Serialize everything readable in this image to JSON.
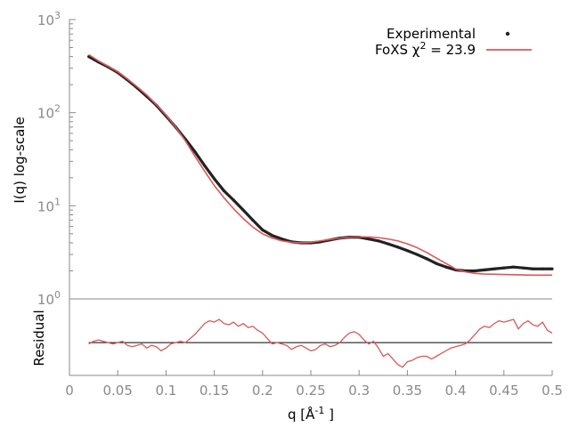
{
  "chart_data": [
    {
      "type": "scatter",
      "panel": "main",
      "xlim": [
        0,
        0.5
      ],
      "ylim": [
        1,
        1000
      ],
      "y_scale": "log",
      "ylabel": "I(q) log-scale",
      "y_ticks": [
        {
          "value": 1,
          "base": "10",
          "exp": "0"
        },
        {
          "value": 10,
          "base": "10",
          "exp": "1"
        },
        {
          "value": 100,
          "base": "10",
          "exp": "2"
        },
        {
          "value": 1000,
          "base": "10",
          "exp": "3"
        }
      ],
      "legend": {
        "position": "top-right",
        "entries": [
          {
            "label": "Experimental",
            "color": "#222222",
            "style": "points"
          },
          {
            "label_prefix": "FoXS χ",
            "label_sup": "2",
            "label_suffix": " = 23.9",
            "color": "#d9585a",
            "style": "line"
          }
        ]
      },
      "series": [
        {
          "name": "Experimental",
          "color": "#222222",
          "x": [
            0.02,
            0.03,
            0.04,
            0.05,
            0.06,
            0.07,
            0.08,
            0.09,
            0.1,
            0.11,
            0.12,
            0.13,
            0.14,
            0.15,
            0.16,
            0.17,
            0.18,
            0.19,
            0.2,
            0.21,
            0.22,
            0.23,
            0.24,
            0.25,
            0.26,
            0.27,
            0.28,
            0.29,
            0.3,
            0.31,
            0.32,
            0.33,
            0.34,
            0.35,
            0.36,
            0.37,
            0.38,
            0.39,
            0.4,
            0.41,
            0.42,
            0.43,
            0.44,
            0.45,
            0.46,
            0.47,
            0.48,
            0.49,
            0.5
          ],
          "y": [
            400,
            350,
            310,
            270,
            225,
            185,
            150,
            120,
            92,
            70,
            52,
            38,
            27,
            19.5,
            14.5,
            11.5,
            9.0,
            7.0,
            5.5,
            4.8,
            4.4,
            4.1,
            4.0,
            4.0,
            4.1,
            4.3,
            4.5,
            4.6,
            4.6,
            4.4,
            4.2,
            3.9,
            3.6,
            3.3,
            3.0,
            2.7,
            2.4,
            2.2,
            2.05,
            2.0,
            2.0,
            2.05,
            2.1,
            2.15,
            2.2,
            2.15,
            2.1,
            2.1,
            2.1
          ]
        },
        {
          "name_prefix": "FoXS χ",
          "name_sup": "2",
          "name_suffix": " = 23.9",
          "color": "#d9585a",
          "x": [
            0.02,
            0.03,
            0.04,
            0.05,
            0.06,
            0.07,
            0.08,
            0.09,
            0.1,
            0.11,
            0.12,
            0.13,
            0.14,
            0.15,
            0.16,
            0.17,
            0.18,
            0.19,
            0.2,
            0.21,
            0.22,
            0.23,
            0.24,
            0.25,
            0.26,
            0.27,
            0.28,
            0.29,
            0.3,
            0.31,
            0.32,
            0.33,
            0.34,
            0.35,
            0.36,
            0.37,
            0.38,
            0.39,
            0.4,
            0.41,
            0.42,
            0.43,
            0.44,
            0.45,
            0.46,
            0.47,
            0.48,
            0.49,
            0.5
          ],
          "y": [
            420,
            360,
            315,
            275,
            230,
            190,
            155,
            122,
            94,
            70,
            50,
            34,
            23.5,
            16.5,
            12.2,
            9.3,
            7.3,
            5.9,
            5.0,
            4.5,
            4.2,
            4.05,
            4.0,
            4.05,
            4.2,
            4.35,
            4.5,
            4.6,
            4.65,
            4.62,
            4.55,
            4.4,
            4.2,
            3.9,
            3.55,
            3.15,
            2.75,
            2.4,
            2.1,
            1.95,
            1.88,
            1.85,
            1.84,
            1.83,
            1.82,
            1.81,
            1.8,
            1.8,
            1.8
          ]
        }
      ]
    },
    {
      "type": "line",
      "panel": "residual",
      "xlabel_prefix": "q [Å",
      "xlabel_sup": "-1",
      "xlabel_suffix": " ]",
      "ylabel": "Residual",
      "xlim": [
        0,
        0.5
      ],
      "ylim": [
        -1.2,
        1.6
      ],
      "x_tick_labels": [
        "0",
        "0.05",
        "0.1",
        "0.15",
        "0.2",
        "0.25",
        "0.3",
        "0.35",
        "0.4",
        "0.45",
        "0.5"
      ],
      "baseline": 0,
      "series": [
        {
          "color": "#d9585a",
          "x": [
            0.02,
            0.025,
            0.03,
            0.035,
            0.04,
            0.045,
            0.05,
            0.055,
            0.06,
            0.065,
            0.07,
            0.075,
            0.08,
            0.085,
            0.09,
            0.095,
            0.1,
            0.105,
            0.11,
            0.115,
            0.12,
            0.125,
            0.13,
            0.135,
            0.14,
            0.145,
            0.15,
            0.155,
            0.16,
            0.165,
            0.17,
            0.175,
            0.18,
            0.185,
            0.19,
            0.195,
            0.2,
            0.205,
            0.21,
            0.215,
            0.22,
            0.225,
            0.23,
            0.235,
            0.24,
            0.245,
            0.25,
            0.255,
            0.26,
            0.265,
            0.27,
            0.275,
            0.28,
            0.285,
            0.29,
            0.295,
            0.3,
            0.305,
            0.31,
            0.315,
            0.32,
            0.325,
            0.33,
            0.335,
            0.34,
            0.345,
            0.35,
            0.355,
            0.36,
            0.365,
            0.37,
            0.375,
            0.38,
            0.385,
            0.39,
            0.395,
            0.4,
            0.405,
            0.41,
            0.415,
            0.42,
            0.425,
            0.43,
            0.435,
            0.44,
            0.445,
            0.45,
            0.455,
            0.46,
            0.465,
            0.47,
            0.475,
            0.48,
            0.485,
            0.49,
            0.495,
            0.5
          ],
          "y": [
            -0.05,
            0.05,
            0.1,
            0.05,
            0.0,
            -0.05,
            0.0,
            0.05,
            -0.1,
            -0.15,
            -0.1,
            -0.05,
            -0.2,
            -0.1,
            -0.15,
            -0.3,
            -0.2,
            -0.05,
            0.0,
            0.05,
            0.0,
            0.15,
            0.3,
            0.5,
            0.7,
            0.8,
            0.75,
            0.85,
            0.7,
            0.65,
            0.75,
            0.6,
            0.7,
            0.55,
            0.6,
            0.45,
            0.35,
            0.15,
            -0.05,
            0.0,
            -0.05,
            -0.1,
            -0.25,
            -0.15,
            -0.1,
            -0.2,
            -0.3,
            -0.25,
            -0.1,
            -0.05,
            -0.15,
            -0.1,
            0.0,
            0.2,
            0.35,
            0.4,
            0.3,
            0.1,
            -0.05,
            0.05,
            -0.2,
            -0.5,
            -0.4,
            -0.6,
            -0.8,
            -0.9,
            -0.7,
            -0.65,
            -0.55,
            -0.5,
            -0.5,
            -0.6,
            -0.5,
            -0.4,
            -0.3,
            -0.2,
            -0.15,
            -0.1,
            -0.05,
            0.1,
            0.3,
            0.5,
            0.6,
            0.55,
            0.7,
            0.8,
            0.75,
            0.8,
            0.85,
            0.5,
            0.7,
            0.8,
            0.65,
            0.6,
            0.75,
            0.45,
            0.35
          ]
        }
      ]
    }
  ]
}
